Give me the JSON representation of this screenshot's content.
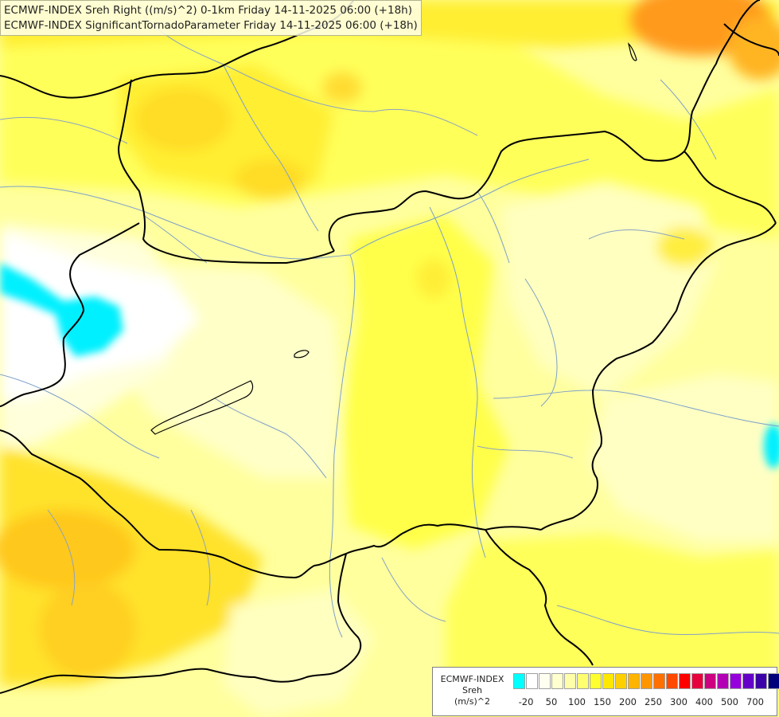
{
  "title": {
    "line1": "ECMWF-INDEX Sreh Right ((m/s)^2) 0-1km Friday 14-11-2025 06:00 (+18h)",
    "line2": "ECMWF-INDEX SignificantTornadoParameter Friday 14-11-2025 06:00 (+18h)"
  },
  "legend": {
    "line1": "ECMWF-INDEX",
    "line2": "Sreh",
    "line3": "(m/s)^2",
    "colors": [
      "#00ffff",
      "#ffffff",
      "#fffff0",
      "#ffffd0",
      "#ffffaa",
      "#ffff70",
      "#ffff30",
      "#ffe800",
      "#ffd000",
      "#ffb400",
      "#ff9600",
      "#ff7000",
      "#ff4800",
      "#ff0000",
      "#e6003c",
      "#cc0080",
      "#b400b4",
      "#9600dc",
      "#6400c8",
      "#3c00a8",
      "#00007a"
    ],
    "ticks": [
      {
        "label": "-20",
        "at": 1
      },
      {
        "label": "50",
        "at": 3
      },
      {
        "label": "100",
        "at": 5
      },
      {
        "label": "150",
        "at": 7
      },
      {
        "label": "200",
        "at": 9
      },
      {
        "label": "250",
        "at": 11
      },
      {
        "label": "300",
        "at": 13
      },
      {
        "label": "400",
        "at": 15
      },
      {
        "label": "500",
        "at": 17
      },
      {
        "label": "700",
        "at": 19
      }
    ]
  }
}
